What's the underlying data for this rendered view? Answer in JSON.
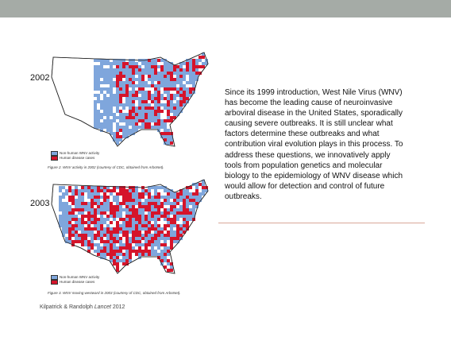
{
  "maps": [
    {
      "year": "2002",
      "legend": [
        "Non-human WNV activity",
        "Human disease cases"
      ],
      "caption": "Figure 2. WNV activity in 2002 (courtesy of CDC, obtained from ArboNet)."
    },
    {
      "year": "2003",
      "legend": [
        "Non-human WNV activity",
        "Human disease cases"
      ],
      "caption": "Figure 3. WNV moving westward in 2003 (courtesy of CDC, obtained from ArboNet)."
    }
  ],
  "citation": {
    "authors": "Kilpatrick & Randolph",
    "journal": "Lancet",
    "year": "2012"
  },
  "paragraph": [
    "Since its 1999 introduction, West Nile Virus (WNV)",
    "has become the leading cause of neuroinvasive",
    "arboviral disease in the United States, sporadically",
    "causing severe outbreaks. It is still unclear what",
    "factors determine these outbreaks and what",
    "contribution viral evolution plays in this process. To",
    "address these questions, we innovatively apply",
    "tools from population genetics and molecular",
    "biology to the epidemiology of WNV disease which",
    "would allow for detection and control of future",
    "outbreaks."
  ]
}
